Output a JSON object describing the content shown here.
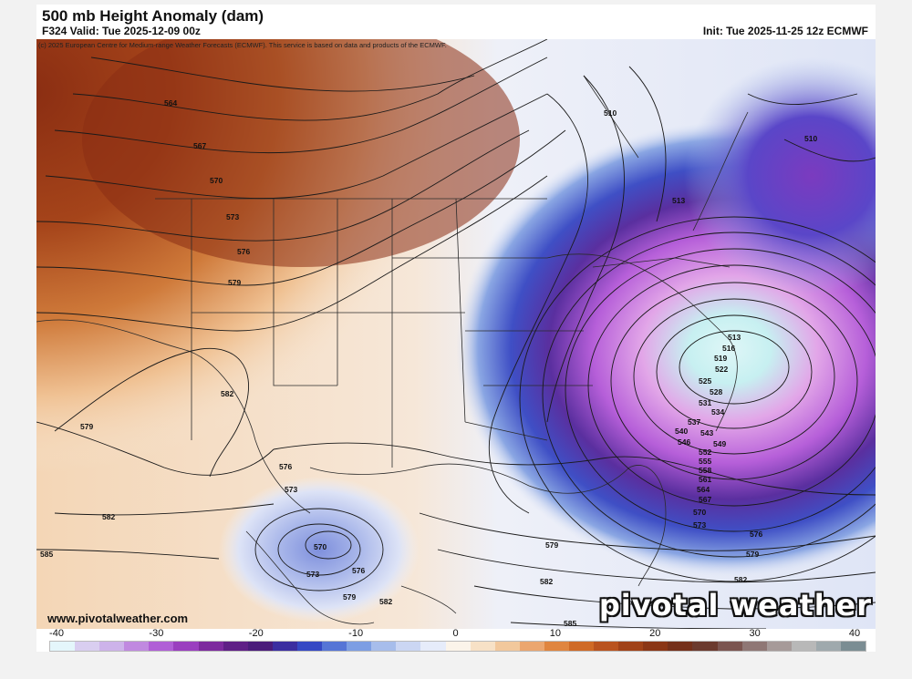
{
  "header": {
    "title": "500 mb Height Anomaly (dam)",
    "valid": "F324 Valid: Tue 2025-12-09 00z",
    "init": "Init: Tue 2025-11-25 12z ECMWF",
    "copyright": "(c) 2025 European Centre for Medium-range Weather Forecasts (ECMWF). This service is based on data and products of the ECMWF."
  },
  "footer": {
    "website": "www.pivotalweather.com",
    "brand": "pivotal weather"
  },
  "colorbar": {
    "ticks": [
      "-40",
      "-30",
      "-20",
      "-10",
      "0",
      "10",
      "20",
      "30",
      "40"
    ],
    "colors": [
      "#e4f6fb",
      "#d9cef0",
      "#cdb3ea",
      "#c089e0",
      "#b05fd6",
      "#9a3fbf",
      "#7d2a9e",
      "#5f1f86",
      "#4a1c7a",
      "#3b2ea0",
      "#3548c4",
      "#5675d6",
      "#7d9ee3",
      "#a7bdeb",
      "#cbd6f3",
      "#e6ecfa",
      "#fbf4ea",
      "#f7e1c6",
      "#f2c89c",
      "#eba66f",
      "#e0853f",
      "#cf6a26",
      "#b9531f",
      "#a04218",
      "#8a3616",
      "#74301a",
      "#6b3a2e",
      "#7b5550",
      "#8f7775",
      "#a69a99",
      "#b8b8b8",
      "#9fa9ad",
      "#7b8d93"
    ]
  },
  "map_labels": {
    "lines": {
      "h510": "510",
      "h513": "513",
      "h516": "516",
      "h519": "519",
      "h522": "522",
      "h525": "525",
      "h528": "528",
      "h531": "531",
      "h534": "534",
      "h537": "537",
      "h540": "540",
      "h543": "543",
      "h546": "546",
      "h549": "549",
      "h552": "552",
      "h555": "555",
      "h558": "558",
      "h561": "561",
      "h564": "564",
      "h567": "567",
      "h570": "570",
      "h573": "573",
      "h576": "576",
      "h579": "579",
      "h582": "582",
      "h585": "585"
    }
  }
}
